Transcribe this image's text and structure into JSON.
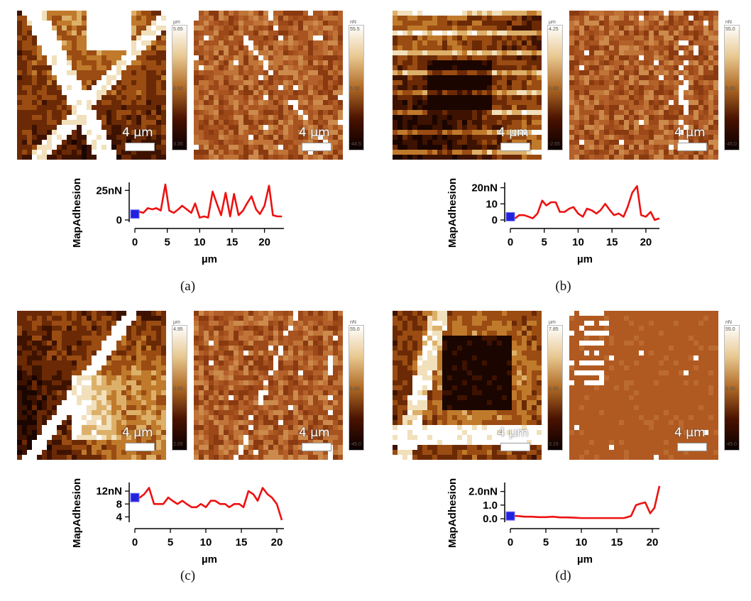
{
  "chart_data": [
    {
      "type": "line",
      "panel": "(a)",
      "xlabel": "µm",
      "ylabel": "MapAdhesion",
      "xticks": [
        "0",
        "5",
        "10",
        "15",
        "20"
      ],
      "yticks": [
        "0",
        "25nN"
      ],
      "xlim": [
        0,
        23
      ],
      "ylim": [
        0,
        30
      ],
      "series": [
        {
          "x": [
            0,
            0.7,
            1.3,
            2,
            2.7,
            3.3,
            4,
            4.7,
            5.3,
            6,
            6.7,
            7.3,
            8,
            8.7,
            9.3,
            10,
            10.7,
            11.3,
            12,
            12.7,
            13.3,
            14,
            14.7,
            15.3,
            16,
            16.7,
            17.3,
            18,
            18.7,
            19.3,
            20,
            20.7,
            21.3,
            22,
            22.7
          ],
          "values": [
            5,
            7,
            6,
            10,
            9,
            10,
            8,
            30,
            8,
            6,
            9,
            12,
            9,
            6,
            14,
            2,
            3,
            2,
            24,
            13,
            4,
            23,
            3,
            22,
            4,
            8,
            14,
            20,
            9,
            5,
            12,
            29,
            4,
            3,
            3
          ]
        }
      ],
      "colorbars": [
        {
          "unit": "µm",
          "max": "5.65",
          "mid": "4.50",
          "min": "3.35"
        },
        {
          "unit": "nN",
          "max": "55.5",
          "mid": "5.50",
          "min": "-44.5"
        }
      ],
      "scalebar": "4 µm"
    },
    {
      "type": "line",
      "panel": "(b)",
      "xlabel": "µm",
      "ylabel": "MapAdhesion",
      "xticks": [
        "0",
        "5",
        "10",
        "15",
        "20"
      ],
      "yticks": [
        "0",
        "10",
        "20nN"
      ],
      "xlim": [
        0,
        22
      ],
      "ylim": [
        0,
        22
      ],
      "series": [
        {
          "x": [
            0,
            0.7,
            1.3,
            2,
            2.7,
            3.3,
            4,
            4.7,
            5.3,
            6,
            6.7,
            7.3,
            8,
            8.7,
            9.3,
            10,
            10.7,
            11.3,
            12,
            12.7,
            13.3,
            14,
            14.7,
            15.3,
            16,
            16.7,
            17.3,
            18,
            18.7,
            19.3,
            20,
            20.7,
            21.3,
            22
          ],
          "values": [
            2,
            1,
            3,
            3,
            2,
            1,
            4,
            12,
            9,
            11,
            11,
            5,
            5,
            7,
            8,
            4,
            2,
            7,
            6,
            4,
            6,
            10,
            6,
            3,
            4,
            2,
            8,
            17,
            21,
            3,
            2,
            5,
            0,
            1
          ]
        }
      ],
      "colorbars": [
        {
          "unit": "µm",
          "max": "4.25",
          "mid": "0.80",
          "min": "-2.65"
        },
        {
          "unit": "nN",
          "max": "55.0",
          "mid": "5.00",
          "min": "-45.0"
        }
      ],
      "scalebar": "4 µm"
    },
    {
      "type": "line",
      "panel": "(c)",
      "xlabel": "µm",
      "ylabel": "MapAdhesion",
      "xticks": [
        "0",
        "5",
        "10",
        "15",
        "20"
      ],
      "yticks": [
        "4",
        "8",
        "12nN"
      ],
      "xlim": [
        0,
        21
      ],
      "ylim": [
        3,
        14
      ],
      "series": [
        {
          "x": [
            0,
            0.7,
            1.3,
            2,
            2.7,
            3.3,
            4,
            4.7,
            5.3,
            6,
            6.7,
            7.3,
            8,
            8.7,
            9.3,
            10,
            10.7,
            11.3,
            12,
            12.7,
            13.3,
            14,
            14.7,
            15.3,
            16,
            16.7,
            17.3,
            18,
            18.7,
            19.3,
            20,
            20.7
          ],
          "values": [
            10,
            10,
            11,
            13,
            8,
            8,
            8,
            10,
            9,
            8,
            9,
            8,
            7,
            7,
            8,
            7,
            9,
            9,
            8,
            8,
            7,
            8,
            8,
            7,
            12,
            11,
            9,
            13,
            11,
            10,
            8,
            3
          ]
        }
      ],
      "colorbars": [
        {
          "unit": "µm",
          "max": "4.95",
          "mid": "3.50",
          "min": "2.05"
        },
        {
          "unit": "nN",
          "max": "55.0",
          "mid": "5.00",
          "min": "-45.0"
        }
      ],
      "scalebar": "4 µm"
    },
    {
      "type": "line",
      "panel": "(d)",
      "xlabel": "µm",
      "ylabel": "MapAdhesion",
      "xticks": [
        "0",
        "5",
        "10",
        "15",
        "20"
      ],
      "yticks": [
        "0.0",
        "1.0",
        "2.0nN"
      ],
      "xlim": [
        0,
        21
      ],
      "ylim": [
        -0.1,
        2.5
      ],
      "series": [
        {
          "x": [
            0,
            1,
            2,
            3,
            4,
            5,
            6,
            7,
            8,
            9,
            10,
            11,
            12,
            13,
            14,
            15,
            16,
            17,
            17.7,
            18.3,
            19,
            19.7,
            20.3,
            21
          ],
          "values": [
            0.2,
            0.2,
            0.15,
            0.15,
            0.12,
            0.12,
            0.15,
            0.1,
            0.1,
            0.08,
            0.05,
            0.05,
            0.05,
            0.05,
            0.05,
            0.05,
            0.05,
            0.2,
            1.0,
            1.1,
            1.2,
            0.4,
            0.8,
            2.4
          ]
        }
      ],
      "colorbars": [
        {
          "unit": "µm",
          "max": "7.85",
          "mid": "5.50",
          "min": "3.15"
        },
        {
          "unit": "nN",
          "max": "55.0",
          "mid": "5.00",
          "min": "-45.0"
        }
      ],
      "scalebar": "4 µm"
    }
  ],
  "captions": [
    "(a)",
    "(b)",
    "(c)",
    "(d)"
  ],
  "colors": {
    "line": "#ee1111",
    "marker": "#2222dd"
  }
}
